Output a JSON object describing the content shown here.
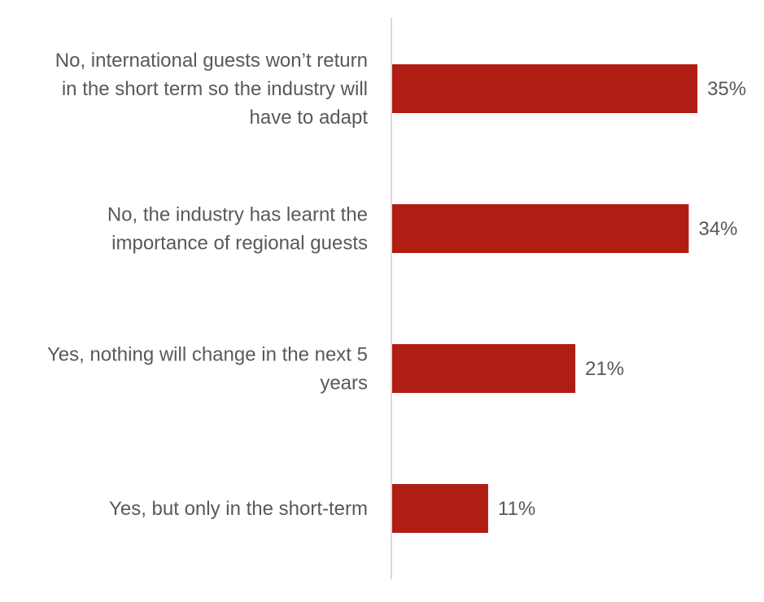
{
  "chart_data": {
    "type": "bar",
    "orientation": "horizontal",
    "categories": [
      "No, international guests won’t return in the short term so the industry will have to adapt",
      "No, the industry has learnt the importance of regional guests",
      "Yes, nothing will change in the next 5 years",
      "Yes, but only in the short-term"
    ],
    "category_lines": [
      [
        "No, international guests won’t return",
        "in the short term so the industry will",
        "have to adapt"
      ],
      [
        "No, the industry has learnt the",
        "importance of regional guests"
      ],
      [
        "Yes, nothing will change in the next 5",
        "years"
      ],
      [
        "Yes, but only in the short-term"
      ]
    ],
    "values": [
      35,
      34,
      21,
      11
    ],
    "data_labels": [
      "35%",
      "34%",
      "21%",
      "11%"
    ],
    "unit": "%",
    "title": "",
    "xlabel": "",
    "ylabel": "",
    "xlim": [
      0,
      40
    ],
    "grid": false,
    "legend": "none",
    "colors": {
      "bar": "#AF1D13",
      "text": "#595959",
      "axis": "#D9D9D9"
    }
  }
}
